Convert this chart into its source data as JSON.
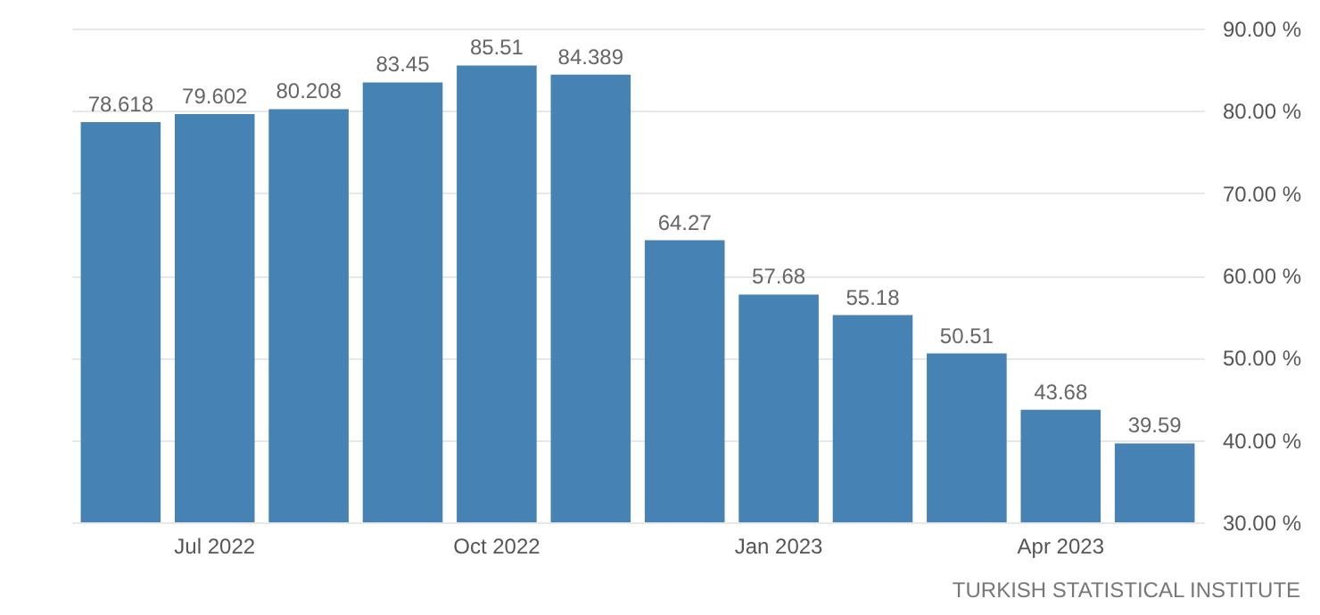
{
  "chart_data": {
    "type": "bar",
    "categories": [
      null,
      "Jul 2022",
      null,
      null,
      "Oct 2022",
      null,
      null,
      "Jan 2023",
      null,
      null,
      "Apr 2023",
      null
    ],
    "values": [
      78.618,
      79.602,
      80.208,
      83.45,
      85.51,
      84.389,
      64.27,
      57.68,
      55.18,
      50.51,
      43.68,
      39.59
    ],
    "color": "#4682b4",
    "ylim": [
      30,
      90
    ],
    "yticks": [
      {
        "value": 30,
        "label": "30.00 %"
      },
      {
        "value": 40,
        "label": "40.00 %"
      },
      {
        "value": 50,
        "label": "50.00 %"
      },
      {
        "value": 60,
        "label": "60.00 %"
      },
      {
        "value": 70,
        "label": "70.00 %"
      },
      {
        "value": 80,
        "label": "80.00 %"
      },
      {
        "value": 90,
        "label": "90.00 %"
      }
    ],
    "grid": "y",
    "data_labels": true,
    "annotations": [
      "TURKISH STATISTICAL INSTITUTE"
    ]
  }
}
